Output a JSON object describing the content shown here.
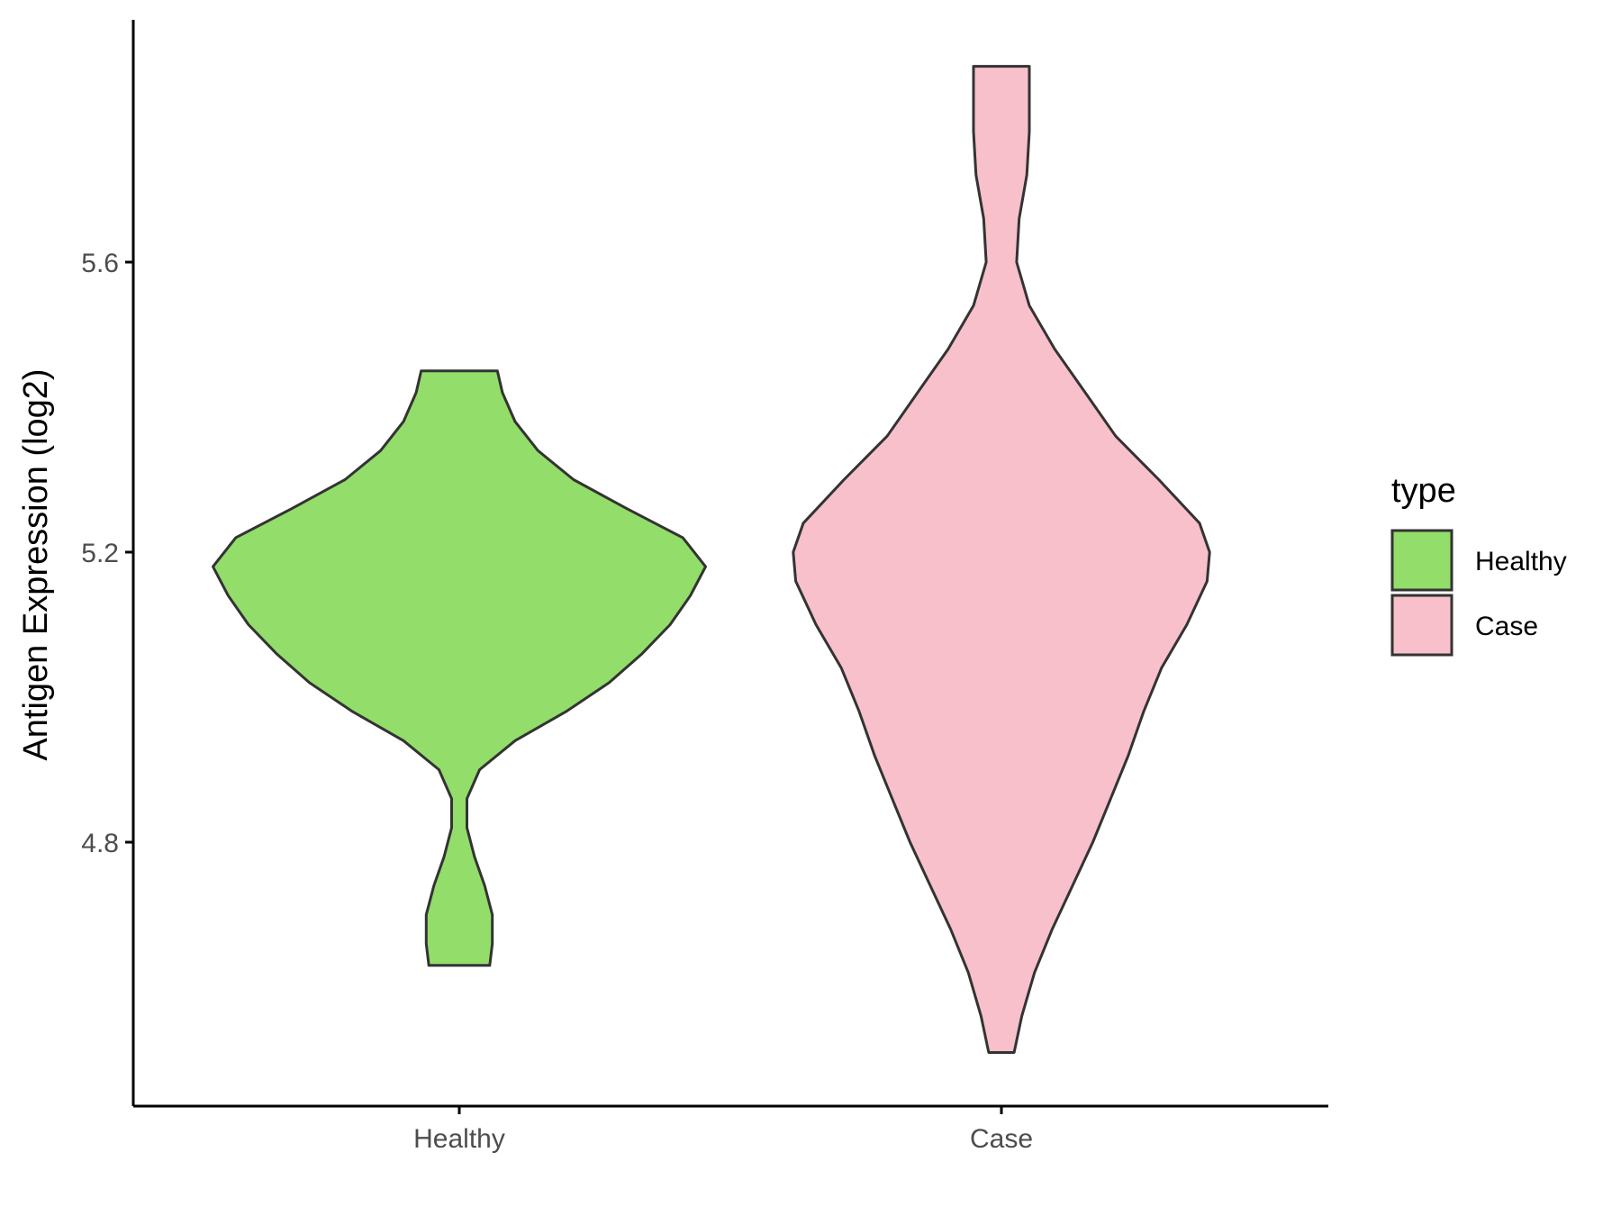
{
  "chart_data": {
    "type": "violin",
    "ylabel": "Antigen Expression (log2)",
    "xlabel": "",
    "categories": [
      "Healthy",
      "Case"
    ],
    "y_ticks": [
      "4.8",
      "5.2",
      "5.6"
    ],
    "ylim": [
      4.46,
      5.96
    ],
    "legend": {
      "title": "type",
      "position": "right",
      "entries": [
        {
          "label": "Healthy",
          "color": "#93dd6a"
        },
        {
          "label": "Case",
          "color": "#f7c0cb"
        }
      ]
    },
    "series": [
      {
        "name": "Healthy",
        "color": "#93dd6a",
        "min": 4.63,
        "max": 5.45,
        "density_profile": [
          [
            4.63,
            0.12
          ],
          [
            4.66,
            0.13
          ],
          [
            4.7,
            0.13
          ],
          [
            4.74,
            0.1
          ],
          [
            4.78,
            0.06
          ],
          [
            4.82,
            0.03
          ],
          [
            4.86,
            0.03
          ],
          [
            4.9,
            0.08
          ],
          [
            4.94,
            0.22
          ],
          [
            4.98,
            0.42
          ],
          [
            5.02,
            0.59
          ],
          [
            5.06,
            0.72
          ],
          [
            5.1,
            0.83
          ],
          [
            5.14,
            0.91
          ],
          [
            5.18,
            0.97
          ],
          [
            5.22,
            0.88
          ],
          [
            5.26,
            0.66
          ],
          [
            5.3,
            0.45
          ],
          [
            5.34,
            0.31
          ],
          [
            5.38,
            0.22
          ],
          [
            5.42,
            0.17
          ],
          [
            5.45,
            0.15
          ]
        ]
      },
      {
        "name": "Case",
        "color": "#f7c0cb",
        "min": 4.51,
        "max": 5.87,
        "density_profile": [
          [
            4.51,
            0.05
          ],
          [
            4.56,
            0.08
          ],
          [
            4.62,
            0.13
          ],
          [
            4.68,
            0.2
          ],
          [
            4.74,
            0.28
          ],
          [
            4.8,
            0.36
          ],
          [
            4.86,
            0.43
          ],
          [
            4.92,
            0.5
          ],
          [
            4.98,
            0.56
          ],
          [
            5.04,
            0.63
          ],
          [
            5.1,
            0.73
          ],
          [
            5.16,
            0.81
          ],
          [
            5.2,
            0.82
          ],
          [
            5.24,
            0.78
          ],
          [
            5.3,
            0.62
          ],
          [
            5.36,
            0.45
          ],
          [
            5.42,
            0.33
          ],
          [
            5.48,
            0.21
          ],
          [
            5.54,
            0.11
          ],
          [
            5.6,
            0.06
          ],
          [
            5.66,
            0.07
          ],
          [
            5.72,
            0.1
          ],
          [
            5.78,
            0.11
          ],
          [
            5.84,
            0.11
          ],
          [
            5.87,
            0.11
          ]
        ]
      }
    ]
  },
  "colors": {
    "outline": "#333333",
    "axis": "#000000"
  }
}
